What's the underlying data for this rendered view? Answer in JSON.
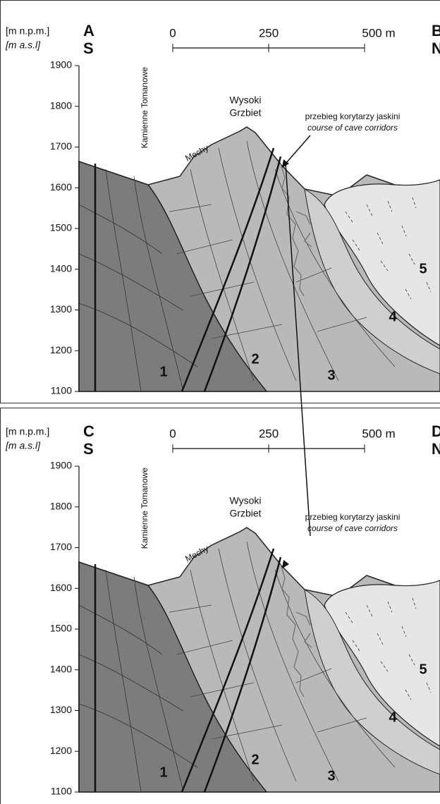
{
  "panels": [
    {
      "unit_local": "[m n.p.m.]",
      "unit_en": "[m a.s.l]",
      "left_label": "A",
      "left_dir": "S",
      "right_label": "B",
      "right_dir": "N",
      "ylim": [
        1100,
        1900
      ],
      "yticks": [
        1100,
        1200,
        1300,
        1400,
        1500,
        1600,
        1700,
        1800,
        1900
      ],
      "scale_ticks": [
        0,
        250,
        {
          "value": 500,
          "label": "500 m"
        }
      ],
      "annotations": {
        "peak_1": "Wysoki",
        "peak_2": "Grzbiet",
        "place_1": "Kamienne Tomanowe",
        "place_2": "Mechy",
        "cave_local": "przebieg korytarzy jaskini",
        "cave_en": "course of cave corridors"
      },
      "units": [
        "1",
        "2",
        "3",
        "4",
        "5"
      ]
    },
    {
      "unit_local": "[m n.p.m.]",
      "unit_en": "[m a.s.l]",
      "left_label": "C",
      "left_dir": "S",
      "right_label": "D",
      "right_dir": "N",
      "ylim": [
        1100,
        1900
      ],
      "yticks": [
        1100,
        1200,
        1300,
        1400,
        1500,
        1600,
        1700,
        1800,
        1900
      ],
      "scale_ticks": [
        0,
        250,
        {
          "value": 500,
          "label": "500 m"
        }
      ],
      "annotations": {
        "peak_1": "Wysoki",
        "peak_2": "Grzbiet",
        "place_1": "Kamienne Tomanowe",
        "place_2": "Mechy",
        "cave_local": "przebieg korytarzy jaskini",
        "cave_en": "course of cave corridors"
      },
      "units": [
        "1",
        "2",
        "3",
        "4",
        "5"
      ]
    }
  ]
}
